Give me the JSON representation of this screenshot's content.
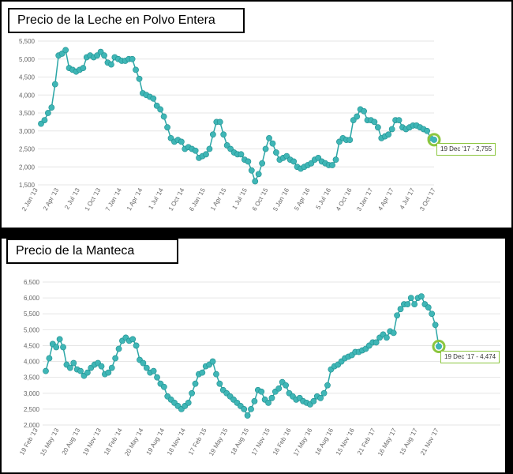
{
  "colors": {
    "series": "#2aa6a6",
    "marker": "#3fb6b6",
    "highlight": "#8cc63f",
    "grid": "#e6e6e6"
  },
  "chart_data": [
    {
      "type": "line",
      "title": "Precio de la Leche  en Polvo Entera",
      "ylim": [
        1500,
        5500
      ],
      "yticks": [
        "1,500",
        "2,000",
        "2,500",
        "3,000",
        "3,500",
        "4,000",
        "4,500",
        "5,000",
        "5,500"
      ],
      "xtick_labels": [
        "2 Jan '13",
        "2 Apr '13",
        "2 Jul '13",
        "1 Oct '13",
        "7 Jan '14",
        "1 Apr '14",
        "1 Jul '14",
        "1 Oct '14",
        "6 Jan '15",
        "1 Apr '15",
        "1 Jul '15",
        "6 Oct '15",
        "5 Jan '16",
        "5 Apr '16",
        "5 Jul '16",
        "4 Oct '16",
        "3 Jan '17",
        "4 Apr '17",
        "4 Jul '17",
        "3 Oct '17"
      ],
      "values": [
        3200,
        3300,
        3500,
        3650,
        4300,
        5100,
        5150,
        5250,
        4750,
        4700,
        4650,
        4700,
        4750,
        5050,
        5100,
        5050,
        5100,
        5200,
        5100,
        4900,
        4850,
        5050,
        5000,
        4950,
        4950,
        5000,
        5000,
        4700,
        4450,
        4050,
        4000,
        3950,
        3900,
        3700,
        3600,
        3400,
        3100,
        2800,
        2700,
        2750,
        2700,
        2500,
        2550,
        2500,
        2450,
        2250,
        2300,
        2350,
        2500,
        2900,
        3250,
        3250,
        2900,
        2600,
        2500,
        2400,
        2350,
        2350,
        2200,
        2150,
        1900,
        1600,
        1800,
        2100,
        2500,
        2800,
        2650,
        2400,
        2200,
        2250,
        2300,
        2200,
        2150,
        2000,
        1950,
        2000,
        2050,
        2100,
        2200,
        2250,
        2150,
        2100,
        2050,
        2050,
        2200,
        2700,
        2800,
        2750,
        2750,
        3300,
        3400,
        3600,
        3550,
        3300,
        3300,
        3250,
        3100,
        2800,
        2850,
        2900,
        3050,
        3300,
        3300,
        3100,
        3050,
        3100,
        3150,
        3150,
        3100,
        3050,
        3000,
        2800,
        2755
      ],
      "tooltip": "19 Dec '17  -  2,755"
    },
    {
      "type": "line",
      "title": "Precio de la Manteca",
      "ylim": [
        2000,
        6500
      ],
      "yticks": [
        "2,000",
        "2,500",
        "3,000",
        "3,500",
        "4,000",
        "4,500",
        "5,000",
        "5,500",
        "6,000",
        "6,500"
      ],
      "xtick_labels": [
        "19 Feb '13",
        "15 May '13",
        "20 Aug '13",
        "19 Nov '13",
        "18 Feb '14",
        "20 May '14",
        "19 Aug '14",
        "18 Nov '14",
        "17 Feb '15",
        "19 May '15",
        "18 Aug '15",
        "17 Nov '15",
        "16 Feb '16",
        "17 May '16",
        "16 Aug '16",
        "15 Nov '16",
        "21 Feb '17",
        "16 May '17",
        "15 Aug '17",
        "21 Nov '17"
      ],
      "values": [
        3700,
        4100,
        4550,
        4450,
        4700,
        4450,
        3900,
        3800,
        3950,
        3750,
        3700,
        3550,
        3650,
        3800,
        3900,
        3950,
        3850,
        3600,
        3650,
        3800,
        4100,
        4400,
        4650,
        4750,
        4650,
        4700,
        4500,
        4050,
        3950,
        3800,
        3650,
        3700,
        3500,
        3300,
        3200,
        2900,
        2800,
        2700,
        2600,
        2500,
        2600,
        2700,
        3000,
        3300,
        3600,
        3650,
        3850,
        3900,
        4000,
        3600,
        3300,
        3100,
        3000,
        2900,
        2800,
        2700,
        2600,
        2500,
        2300,
        2500,
        2750,
        3100,
        3050,
        2800,
        2700,
        2850,
        3050,
        3150,
        3350,
        3250,
        3000,
        2900,
        2800,
        2850,
        2750,
        2700,
        2650,
        2750,
        2900,
        2850,
        3000,
        3250,
        3750,
        3850,
        3900,
        4000,
        4100,
        4150,
        4200,
        4300,
        4300,
        4350,
        4400,
        4500,
        4600,
        4600,
        4750,
        4850,
        4750,
        4950,
        4900,
        5450,
        5650,
        5800,
        5800,
        6000,
        5800,
        6000,
        6050,
        5800,
        5700,
        5500,
        5150,
        4474
      ],
      "tooltip": "19 Dec '17  -  4,474"
    }
  ]
}
